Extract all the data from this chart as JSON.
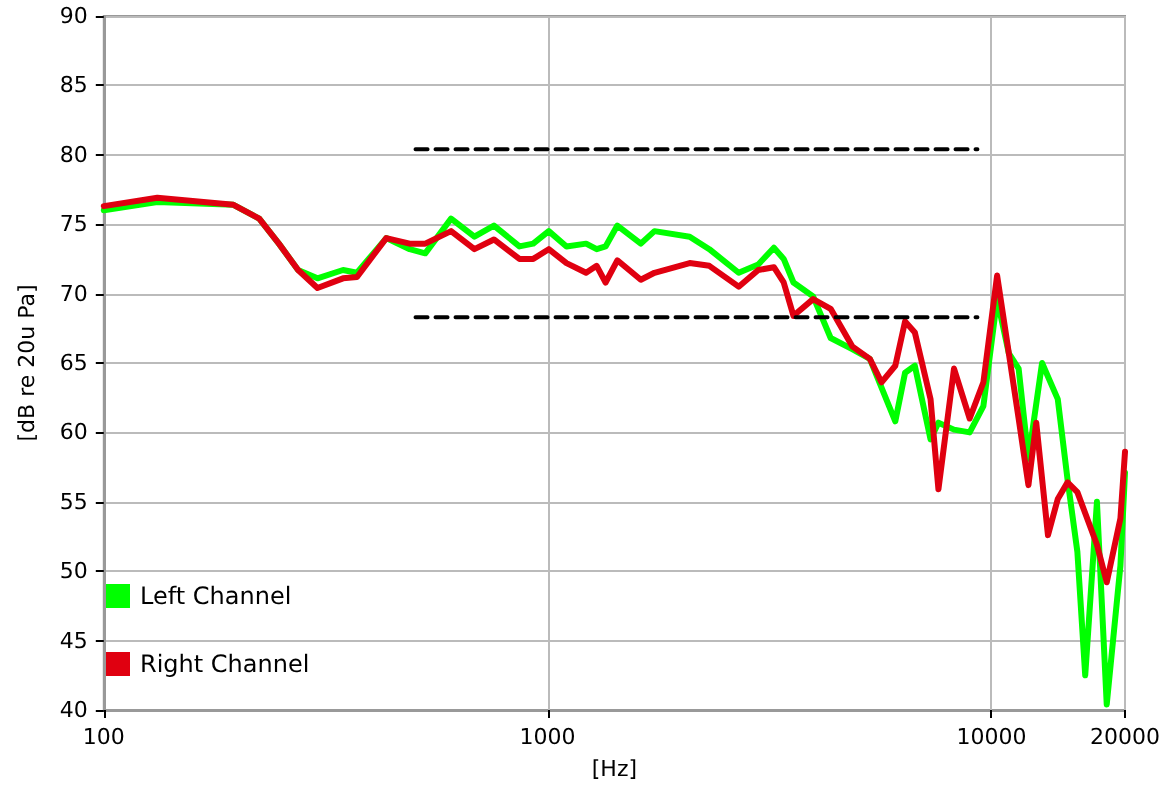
{
  "chart_data": {
    "type": "line",
    "xlabel": "[Hz]",
    "ylabel": "[dB re 20u Pa]",
    "log": "x",
    "xlim": [
      100,
      20000
    ],
    "xticks": [
      100,
      1000,
      10000,
      20000
    ],
    "ylim": [
      40,
      90
    ],
    "yticks": [
      40,
      45,
      50,
      55,
      60,
      65,
      70,
      75,
      80,
      85,
      90
    ],
    "grid": true,
    "legend": "bottom left",
    "marker": "none",
    "series": [
      {
        "name": "Left Channel",
        "color": "#00ff00",
        "line_style": "solid",
        "x": [
          100,
          132,
          196,
          224,
          248,
          274,
          303,
          346,
          372,
          433,
          489,
          530,
          606,
          684,
          757,
          864,
          928,
          1006,
          1103,
          1221,
          1290,
          1351,
          1436,
          1622,
          1741,
          2090,
          2314,
          2695,
          2983,
          3235,
          3404,
          3581,
          3965,
          4343,
          4857,
          5322,
          6073,
          6390,
          6722,
          7292,
          7596,
          8236,
          8933,
          9592,
          10300,
          10946,
          11517,
          12118,
          13007,
          14110,
          14845,
          15620,
          16270,
          17290,
          18190,
          19530,
          20000
        ],
        "values": [
          76.0,
          76.6,
          76.4,
          75.4,
          73.6,
          71.7,
          71.1,
          71.7,
          71.5,
          74.0,
          73.2,
          72.9,
          75.4,
          74.1,
          74.9,
          73.4,
          73.6,
          74.5,
          73.4,
          73.6,
          73.2,
          73.4,
          74.9,
          73.6,
          74.5,
          74.1,
          73.2,
          71.5,
          72.1,
          73.3,
          72.5,
          70.8,
          69.8,
          66.8,
          66.0,
          65.3,
          60.8,
          64.3,
          64.8,
          59.5,
          60.7,
          60.2,
          60.0,
          61.9,
          69.6,
          65.7,
          64.6,
          58.1,
          65.0,
          62.4,
          56.6,
          51.4,
          42.5,
          55.0,
          40.4,
          50.4,
          57.1
        ]
      },
      {
        "name": "Right Channel",
        "color": "#e00010",
        "line_style": "solid",
        "x": [
          100,
          132,
          196,
          224,
          248,
          274,
          303,
          346,
          372,
          433,
          489,
          530,
          606,
          684,
          757,
          864,
          928,
          1006,
          1103,
          1221,
          1290,
          1351,
          1436,
          1622,
          1741,
          2090,
          2314,
          2695,
          2983,
          3235,
          3404,
          3581,
          3965,
          4343,
          4857,
          5322,
          5655,
          6073,
          6390,
          6722,
          7292,
          7596,
          8236,
          8933,
          9592,
          10300,
          10946,
          11517,
          12118,
          12618,
          13410,
          14110,
          14845,
          15620,
          17290,
          18190,
          19530,
          20000
        ],
        "values": [
          76.3,
          76.9,
          76.4,
          75.4,
          73.6,
          71.7,
          70.4,
          71.1,
          71.2,
          74.0,
          73.6,
          73.6,
          74.5,
          73.2,
          73.9,
          72.5,
          72.5,
          73.2,
          72.2,
          71.5,
          72.0,
          70.8,
          72.4,
          71.0,
          71.5,
          72.2,
          72.0,
          70.5,
          71.7,
          71.9,
          70.8,
          68.4,
          69.6,
          68.9,
          66.2,
          65.3,
          63.6,
          64.8,
          68.0,
          67.2,
          62.4,
          55.9,
          64.6,
          61.0,
          63.6,
          71.3,
          65.7,
          61.0,
          56.2,
          60.7,
          52.6,
          55.2,
          56.4,
          55.7,
          51.9,
          49.2,
          53.8,
          58.6
        ]
      },
      {
        "color": "#000000",
        "line_style": "dashed",
        "x": [
          504,
          9300
        ],
        "values": [
          80.4,
          80.4
        ]
      },
      {
        "color": "#000000",
        "line_style": "dashed",
        "x": [
          504,
          9300
        ],
        "values": [
          68.3,
          68.3
        ]
      }
    ]
  }
}
